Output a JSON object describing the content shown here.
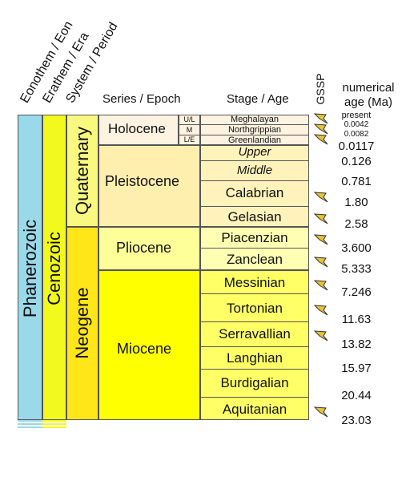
{
  "headers": {
    "eonothem": "Eonothem / Eon",
    "erathem": "Erathem / Era",
    "system": "System / Period",
    "series": "Series / Epoch",
    "stage": "Stage / Age",
    "gssp": "GSSP",
    "age_line1": "numerical",
    "age_line2": "age (Ma)"
  },
  "eon": "Phanerozoic",
  "era": "Cenozoic",
  "periods": {
    "quaternary": "Quaternary",
    "neogene": "Neogene"
  },
  "epochs": {
    "holocene": "Holocene",
    "pleistocene": "Pleistocene",
    "pliocene": "Pliocene",
    "miocene": "Miocene"
  },
  "holocene_subdivisions": {
    "upper": "U/L",
    "middle": "M",
    "lower": "L/E"
  },
  "stages": {
    "meghalayan": "Meghalayan",
    "northgrippian": "Northgrippian",
    "greenlandian": "Greenlandian",
    "upper": "Upper",
    "middle": "Middle",
    "calabrian": "Calabrian",
    "gelasian": "Gelasian",
    "piacenzian": "Piacenzian",
    "zanclean": "Zanclean",
    "messinian": "Messinian",
    "tortonian": "Tortonian",
    "serravallian": "Serravallian",
    "langhian": "Langhian",
    "burdigalian": "Burdigalian",
    "aquitanian": "Aquitanian"
  },
  "ages": {
    "present": "present",
    "a0042": "0.0042",
    "a0082": "0.0082",
    "a0117": "0.0117",
    "a126": "0.126",
    "a781": "0.781",
    "a180": "1.80",
    "a258": "2.58",
    "a3600": "3.600",
    "a5333": "5.333",
    "a7246": "7.246",
    "a1163": "11.63",
    "a1382": "13.82",
    "a1597": "15.97",
    "a2044": "20.44",
    "a2303": "23.03"
  },
  "gssp_icon": "golden-spike-icon",
  "colors": {
    "phanerozoic": "#9AD9EA",
    "cenozoic": "#F2F91D",
    "quaternary": "#F9F97F",
    "neogene": "#FFE619",
    "holocene": "#FEF2E0",
    "pleistocene": "#FFEFAF",
    "pleistocene_stage": "#FFF2BA",
    "pliocene": "#FFFF99",
    "pliocene_stage": "#FFFFB3",
    "miocene": "#FFFF00",
    "miocene_stage": "#FFFF66",
    "spike": "#E8C33A"
  }
}
